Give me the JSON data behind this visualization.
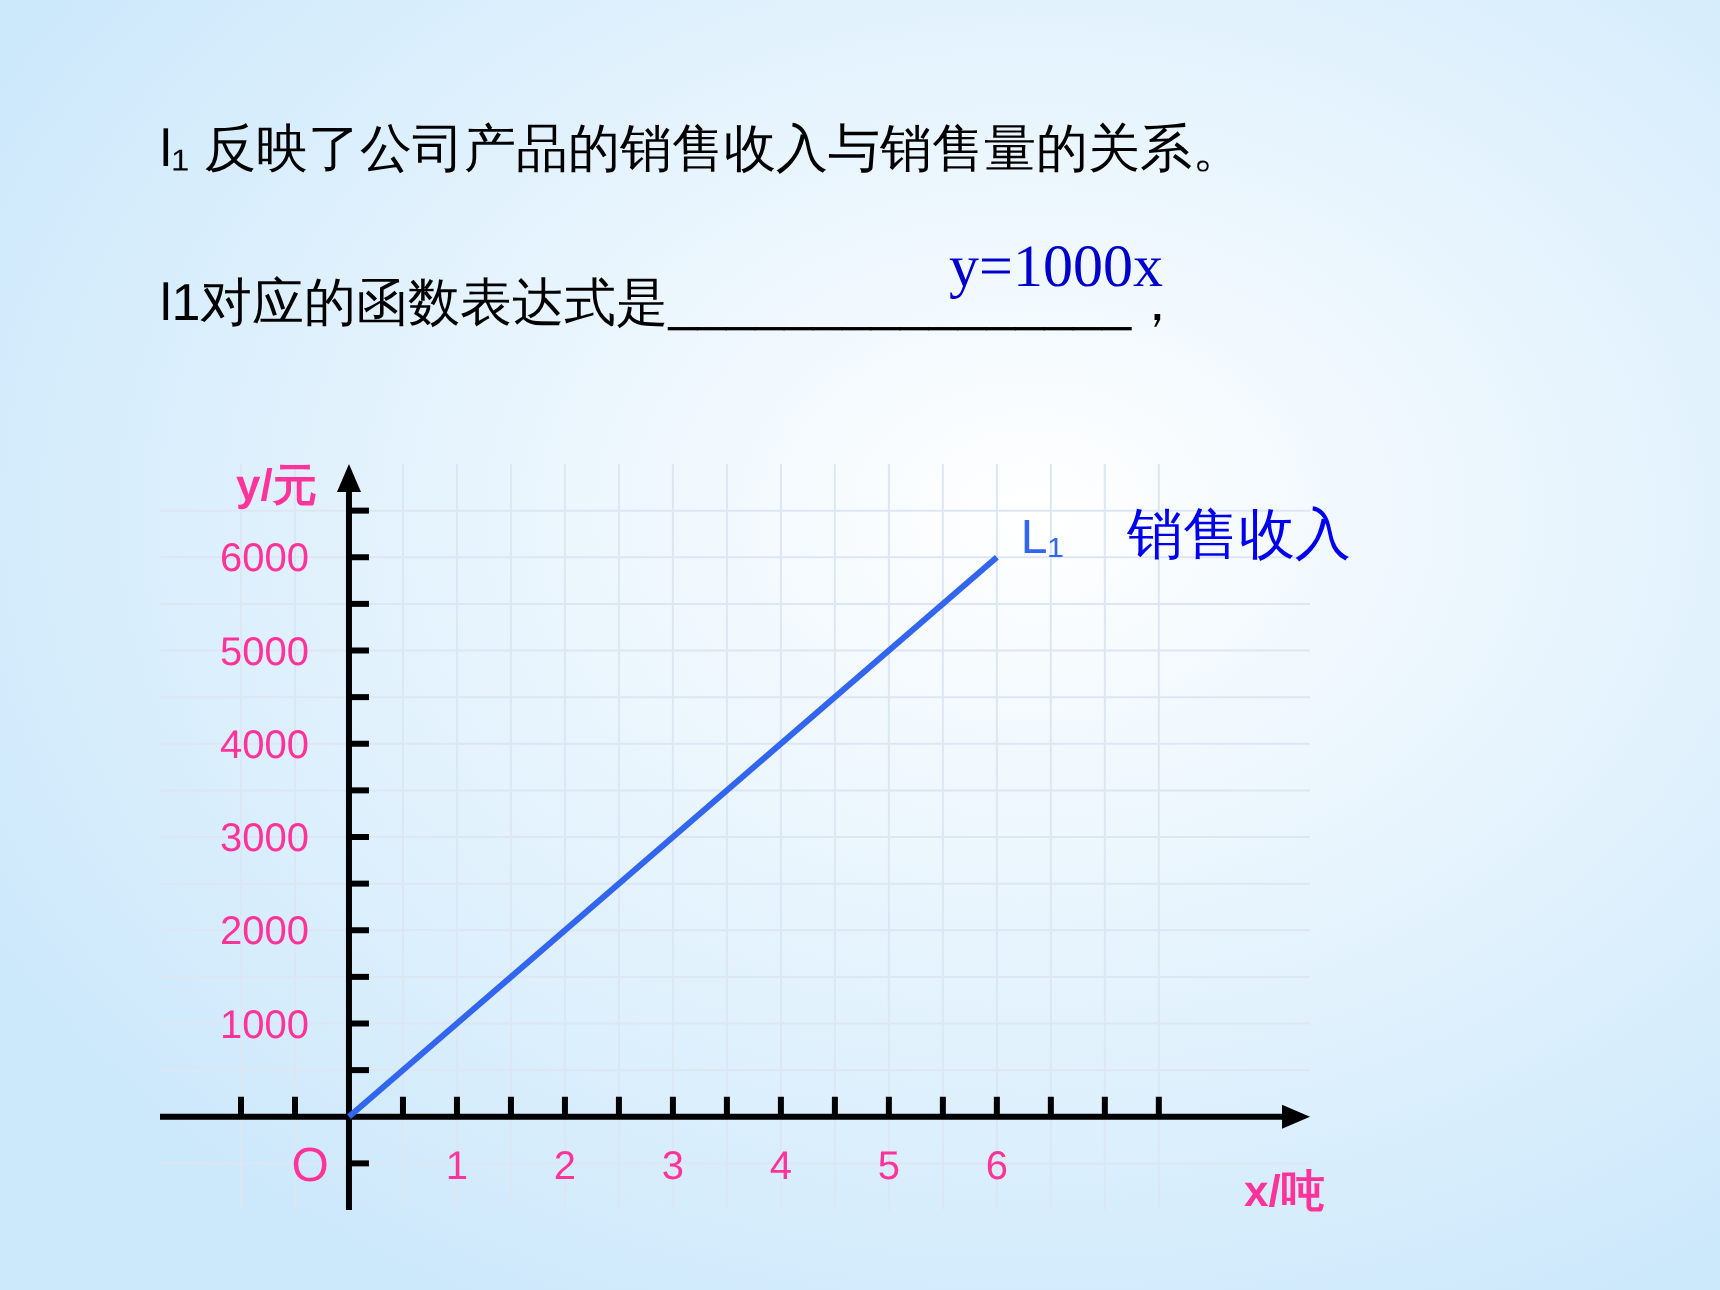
{
  "chart_data": {
    "type": "line",
    "title": "l₁ 反映了公司产品的销售收入与销售量的关系。",
    "subtitle": "l1对应的函数表达式是________________，",
    "xlabel": "x/吨",
    "ylabel": "y/元",
    "series": [
      {
        "name": "L₁",
        "color": "#3366ee",
        "x": [
          0,
          6
        ],
        "values": [
          0,
          6000
        ]
      }
    ],
    "annotations": [
      "y=1000x",
      "O",
      {
        "text": "销售收入",
        "x": 6,
        "y": 6000
      }
    ],
    "xlim": [
      -1.75,
      8.9
    ],
    "ylim": [
      -1000,
      7000
    ],
    "xticks": [
      {
        "value": -1,
        "label": null
      },
      {
        "value": -0.5,
        "label": null
      },
      {
        "value": 0.5,
        "label": null
      },
      1,
      {
        "value": 1.5,
        "label": null
      },
      2,
      {
        "value": 2.5,
        "label": null
      },
      3,
      {
        "value": 3.5,
        "label": null
      },
      4,
      {
        "value": 4.5,
        "label": null
      },
      5,
      {
        "value": 5.5,
        "label": null
      },
      6,
      {
        "value": 6.5,
        "label": null
      },
      {
        "value": 7,
        "label": null
      },
      {
        "value": 7.5,
        "label": null
      }
    ],
    "yticks": [
      {
        "value": -500,
        "label": null
      },
      {
        "value": 500,
        "label": null
      },
      1000,
      {
        "value": 1500,
        "label": null
      },
      2000,
      {
        "value": 2500,
        "label": null
      },
      3000,
      {
        "value": 3500,
        "label": null
      },
      4000,
      {
        "value": 4500,
        "label": null
      },
      5000,
      {
        "value": 5500,
        "label": null
      },
      6000,
      {
        "value": 6500,
        "label": null
      }
    ],
    "grid": true,
    "marker": "none",
    "line_style": "solid"
  }
}
